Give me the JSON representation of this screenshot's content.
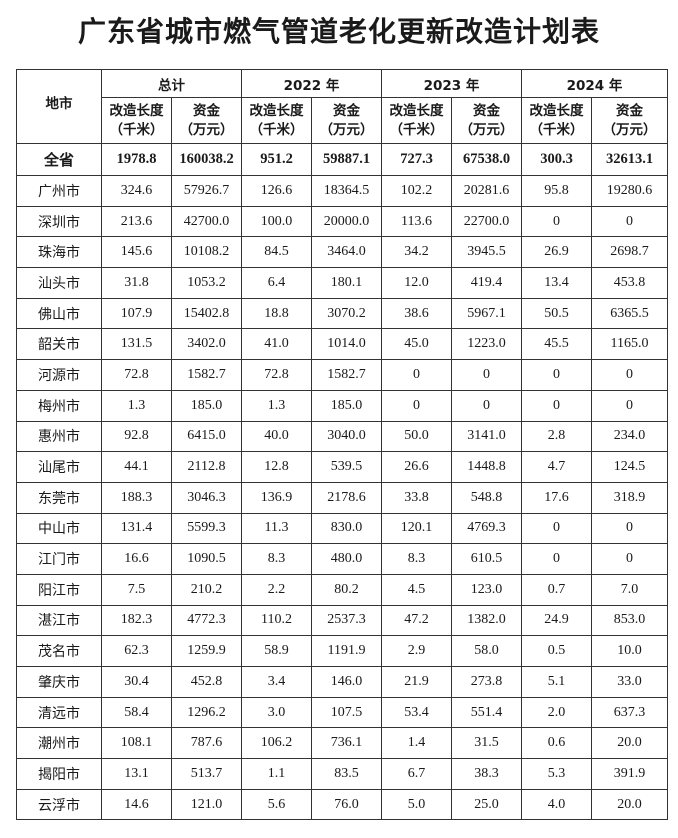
{
  "title": "广东省城市燃气管道老化更新改造计划表",
  "table": {
    "city_header": "地市",
    "groups": [
      "总计",
      "2022 年",
      "2023 年",
      "2024 年"
    ],
    "sub_headers": [
      {
        "line1": "改造长度",
        "line2": "（千米）"
      },
      {
        "line1": "资金",
        "line2": "（万元）"
      }
    ],
    "total": {
      "city": "全省",
      "values": [
        "1978.8",
        "160038.2",
        "951.2",
        "59887.1",
        "727.3",
        "67538.0",
        "300.3",
        "32613.1"
      ]
    },
    "rows": [
      {
        "city": "广州市",
        "values": [
          "324.6",
          "57926.7",
          "126.6",
          "18364.5",
          "102.2",
          "20281.6",
          "95.8",
          "19280.6"
        ]
      },
      {
        "city": "深圳市",
        "values": [
          "213.6",
          "42700.0",
          "100.0",
          "20000.0",
          "113.6",
          "22700.0",
          "0",
          "0"
        ]
      },
      {
        "city": "珠海市",
        "values": [
          "145.6",
          "10108.2",
          "84.5",
          "3464.0",
          "34.2",
          "3945.5",
          "26.9",
          "2698.7"
        ]
      },
      {
        "city": "汕头市",
        "values": [
          "31.8",
          "1053.2",
          "6.4",
          "180.1",
          "12.0",
          "419.4",
          "13.4",
          "453.8"
        ]
      },
      {
        "city": "佛山市",
        "values": [
          "107.9",
          "15402.8",
          "18.8",
          "3070.2",
          "38.6",
          "5967.1",
          "50.5",
          "6365.5"
        ]
      },
      {
        "city": "韶关市",
        "values": [
          "131.5",
          "3402.0",
          "41.0",
          "1014.0",
          "45.0",
          "1223.0",
          "45.5",
          "1165.0"
        ]
      },
      {
        "city": "河源市",
        "values": [
          "72.8",
          "1582.7",
          "72.8",
          "1582.7",
          "0",
          "0",
          "0",
          "0"
        ]
      },
      {
        "city": "梅州市",
        "values": [
          "1.3",
          "185.0",
          "1.3",
          "185.0",
          "0",
          "0",
          "0",
          "0"
        ]
      },
      {
        "city": "惠州市",
        "values": [
          "92.8",
          "6415.0",
          "40.0",
          "3040.0",
          "50.0",
          "3141.0",
          "2.8",
          "234.0"
        ]
      },
      {
        "city": "汕尾市",
        "values": [
          "44.1",
          "2112.8",
          "12.8",
          "539.5",
          "26.6",
          "1448.8",
          "4.7",
          "124.5"
        ]
      },
      {
        "city": "东莞市",
        "values": [
          "188.3",
          "3046.3",
          "136.9",
          "2178.6",
          "33.8",
          "548.8",
          "17.6",
          "318.9"
        ]
      },
      {
        "city": "中山市",
        "values": [
          "131.4",
          "5599.3",
          "11.3",
          "830.0",
          "120.1",
          "4769.3",
          "0",
          "0"
        ]
      },
      {
        "city": "江门市",
        "values": [
          "16.6",
          "1090.5",
          "8.3",
          "480.0",
          "8.3",
          "610.5",
          "0",
          "0"
        ]
      },
      {
        "city": "阳江市",
        "values": [
          "7.5",
          "210.2",
          "2.2",
          "80.2",
          "4.5",
          "123.0",
          "0.7",
          "7.0"
        ]
      },
      {
        "city": "湛江市",
        "values": [
          "182.3",
          "4772.3",
          "110.2",
          "2537.3",
          "47.2",
          "1382.0",
          "24.9",
          "853.0"
        ]
      },
      {
        "city": "茂名市",
        "values": [
          "62.3",
          "1259.9",
          "58.9",
          "1191.9",
          "2.9",
          "58.0",
          "0.5",
          "10.0"
        ]
      },
      {
        "city": "肇庆市",
        "values": [
          "30.4",
          "452.8",
          "3.4",
          "146.0",
          "21.9",
          "273.8",
          "5.1",
          "33.0"
        ]
      },
      {
        "city": "清远市",
        "values": [
          "58.4",
          "1296.2",
          "3.0",
          "107.5",
          "53.4",
          "551.4",
          "2.0",
          "637.3"
        ]
      },
      {
        "city": "潮州市",
        "values": [
          "108.1",
          "787.6",
          "106.2",
          "736.1",
          "1.4",
          "31.5",
          "0.6",
          "20.0"
        ]
      },
      {
        "city": "揭阳市",
        "values": [
          "13.1",
          "513.7",
          "1.1",
          "83.5",
          "6.7",
          "38.3",
          "5.3",
          "391.9"
        ]
      },
      {
        "city": "云浮市",
        "values": [
          "14.6",
          "121.0",
          "5.6",
          "76.0",
          "5.0",
          "25.0",
          "4.0",
          "20.0"
        ]
      }
    ]
  }
}
